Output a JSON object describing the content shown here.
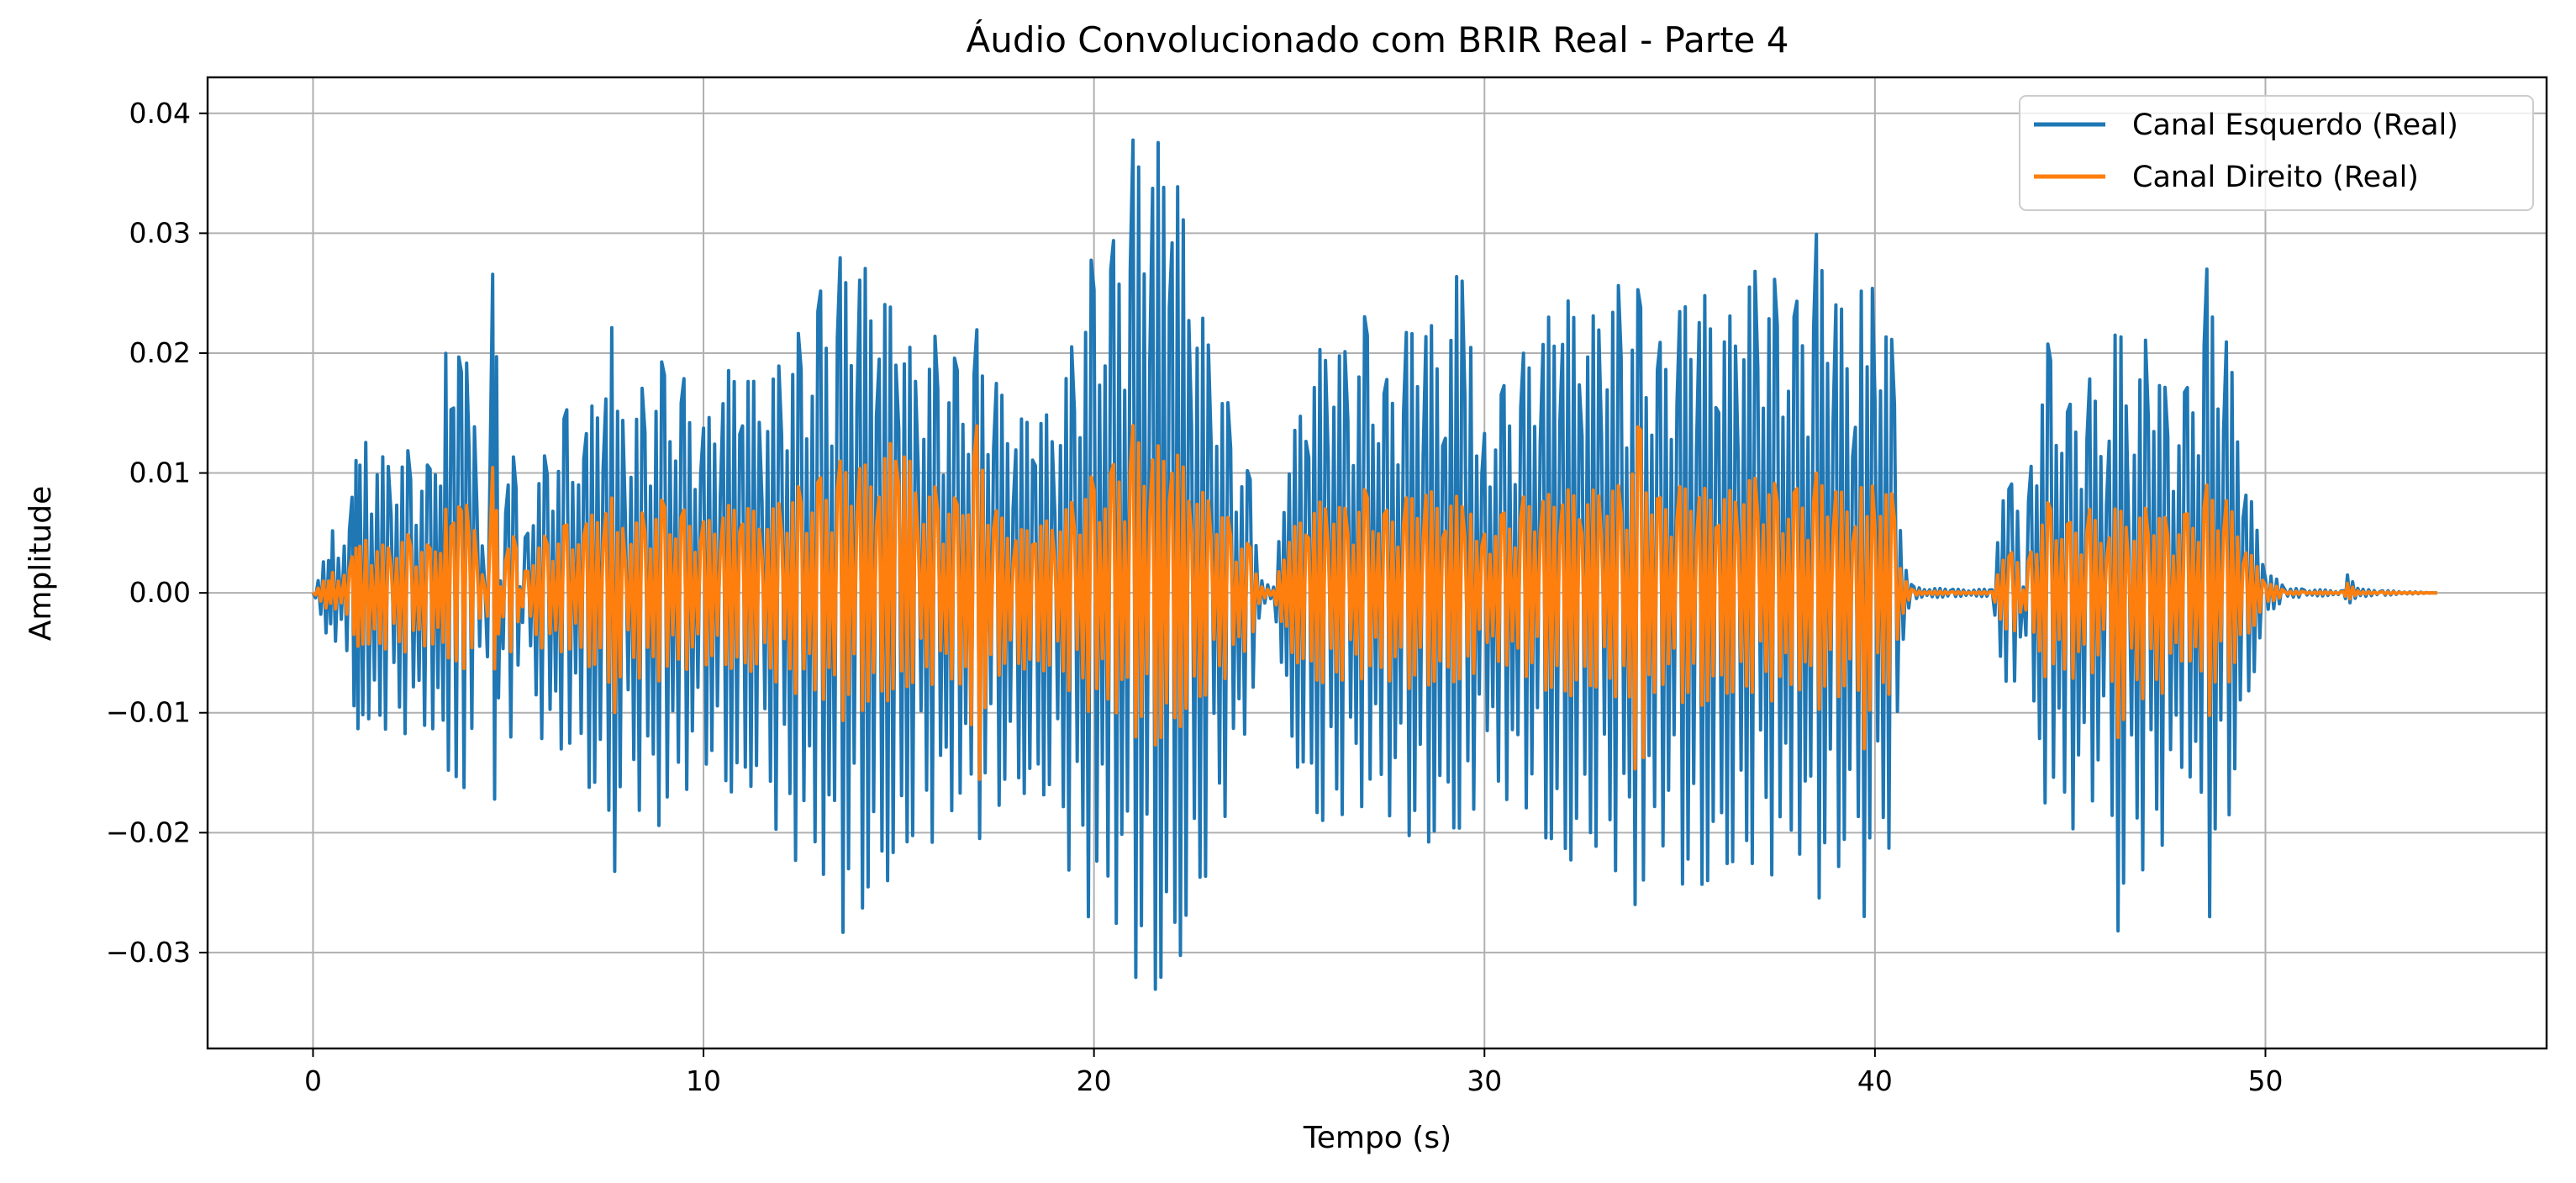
{
  "chart_data": {
    "type": "line",
    "title": "Áudio Convolucionado com BRIR Real - Parte 4",
    "xlabel": "Tempo (s)",
    "ylabel": "Amplitude",
    "xlim": [
      -2.7,
      57.2
    ],
    "ylim": [
      -0.038,
      0.043
    ],
    "xticks": [
      0,
      10,
      20,
      30,
      40,
      50
    ],
    "xtick_labels": [
      "0",
      "10",
      "20",
      "30",
      "40",
      "50"
    ],
    "yticks": [
      0.04,
      0.03,
      0.02,
      0.01,
      0.0,
      -0.01,
      -0.02,
      -0.03
    ],
    "ytick_labels": [
      "0.04",
      "0.03",
      "0.02",
      "0.01",
      "0.00",
      "−0.01",
      "−0.02",
      "−0.03"
    ],
    "grid": true,
    "legend_position": "top-right",
    "series": [
      {
        "name": "Canal Esquerdo (Real)",
        "color": "#1f77b4",
        "x": [
          0,
          0.4,
          0.5,
          0.8,
          1.0,
          1.1,
          1.2,
          1.5,
          2.0,
          2.5,
          3.0,
          3.4,
          3.6,
          3.8,
          4.0,
          4.2,
          4.4,
          4.6,
          4.7,
          4.8,
          5.0,
          5.2,
          5.3,
          5.5,
          6.0,
          6.5,
          6.8,
          7.0,
          7.5,
          7.8,
          8.0,
          8.5,
          9.0,
          9.5,
          10.0,
          10.5,
          11.0,
          11.5,
          12.0,
          12.5,
          13.0,
          13.5,
          14.0,
          14.5,
          15.0,
          15.5,
          16.0,
          16.5,
          17.0,
          17.5,
          18.0,
          18.5,
          19.0,
          19.5,
          20.0,
          20.5,
          21.0,
          21.5,
          22.0,
          22.5,
          23.0,
          23.5,
          24.0,
          24.3,
          24.6,
          25.0,
          25.5,
          26.0,
          26.5,
          27.0,
          27.5,
          28.0,
          28.5,
          29.0,
          29.5,
          29.8,
          30.0,
          30.5,
          31.0,
          31.5,
          32.0,
          32.5,
          33.0,
          33.5,
          34.0,
          34.5,
          35.0,
          35.5,
          36.0,
          36.5,
          37.0,
          37.5,
          38.0,
          38.5,
          39.0,
          39.5,
          39.8,
          40.0,
          40.5,
          40.8,
          41.0,
          42.0,
          43.0,
          43.5,
          43.8,
          44.0,
          44.5,
          45.0,
          45.5,
          46.0,
          46.3,
          46.5,
          47.0,
          47.5,
          48.0,
          48.5,
          49.0,
          49.5,
          50.0,
          50.5,
          51.0,
          52.0,
          52.1,
          52.5,
          53.0,
          54.4
        ],
        "y_upper": [
          0,
          0.004,
          0.006,
          0.004,
          0.008,
          0.012,
          0.014,
          0.012,
          0.011,
          0.012,
          0.011,
          0.02,
          0.016,
          0.022,
          0.018,
          0.014,
          0.001,
          0.03,
          0.02,
          0.001,
          0.01,
          0.012,
          0.001,
          0.008,
          0.012,
          0.016,
          0.009,
          0.014,
          0.02,
          0.025,
          0.012,
          0.018,
          0.02,
          0.018,
          0.014,
          0.018,
          0.02,
          0.016,
          0.02,
          0.022,
          0.026,
          0.028,
          0.028,
          0.025,
          0.024,
          0.018,
          0.022,
          0.02,
          0.022,
          0.018,
          0.014,
          0.016,
          0.014,
          0.022,
          0.029,
          0.03,
          0.038,
          0.037,
          0.039,
          0.026,
          0.021,
          0.015,
          0.01,
          0.001,
          0.0005,
          0.012,
          0.018,
          0.022,
          0.02,
          0.024,
          0.018,
          0.022,
          0.024,
          0.018,
          0.033,
          0.018,
          0.016,
          0.018,
          0.02,
          0.022,
          0.026,
          0.022,
          0.024,
          0.026,
          0.026,
          0.021,
          0.024,
          0.026,
          0.022,
          0.024,
          0.028,
          0.026,
          0.025,
          0.03,
          0.026,
          0.018,
          0.034,
          0.028,
          0.02,
          0.002,
          0.0005,
          0.0003,
          0.0003,
          0.014,
          0.001,
          0.015,
          0.022,
          0.016,
          0.018,
          0.014,
          0.029,
          0.01,
          0.024,
          0.016,
          0.018,
          0.027,
          0.022,
          0.01,
          0.002,
          0.0005,
          0.0003,
          0.0002,
          0.0015,
          0.0003,
          0.0002,
          0
        ],
        "y_lower": [
          0,
          -0.004,
          -0.006,
          -0.004,
          -0.008,
          -0.011,
          -0.012,
          -0.01,
          -0.012,
          -0.012,
          -0.013,
          -0.016,
          -0.014,
          -0.018,
          -0.016,
          -0.011,
          -0.001,
          -0.027,
          -0.018,
          -0.001,
          -0.012,
          -0.013,
          -0.001,
          -0.009,
          -0.014,
          -0.016,
          -0.01,
          -0.016,
          -0.018,
          -0.025,
          -0.014,
          -0.02,
          -0.022,
          -0.018,
          -0.014,
          -0.016,
          -0.018,
          -0.014,
          -0.022,
          -0.024,
          -0.026,
          -0.029,
          -0.027,
          -0.024,
          -0.024,
          -0.019,
          -0.022,
          -0.02,
          -0.022,
          -0.018,
          -0.016,
          -0.018,
          -0.016,
          -0.026,
          -0.03,
          -0.03,
          -0.032,
          -0.034,
          -0.032,
          -0.028,
          -0.022,
          -0.018,
          -0.012,
          -0.001,
          -0.0005,
          -0.012,
          -0.018,
          -0.02,
          -0.018,
          -0.02,
          -0.02,
          -0.02,
          -0.022,
          -0.018,
          -0.022,
          -0.019,
          -0.016,
          -0.02,
          -0.018,
          -0.02,
          -0.024,
          -0.02,
          -0.022,
          -0.024,
          -0.031,
          -0.022,
          -0.024,
          -0.026,
          -0.022,
          -0.024,
          -0.022,
          -0.026,
          -0.024,
          -0.026,
          -0.024,
          -0.018,
          -0.03,
          -0.026,
          -0.02,
          -0.002,
          -0.0005,
          -0.0003,
          -0.0003,
          -0.012,
          -0.001,
          -0.016,
          -0.02,
          -0.022,
          -0.018,
          -0.014,
          -0.034,
          -0.016,
          -0.026,
          -0.02,
          -0.016,
          -0.029,
          -0.02,
          -0.01,
          -0.002,
          -0.0005,
          -0.0003,
          -0.0002,
          -0.001,
          -0.0003,
          -0.0002,
          0
        ]
      },
      {
        "name": "Canal Direito (Real)",
        "color": "#ff7f0e",
        "x": [
          0,
          0.4,
          0.5,
          0.8,
          1.0,
          1.1,
          1.2,
          1.5,
          2.0,
          2.5,
          3.0,
          3.4,
          3.6,
          3.8,
          4.0,
          4.2,
          4.4,
          4.6,
          4.7,
          4.8,
          5.0,
          5.2,
          5.3,
          5.5,
          6.0,
          6.5,
          6.8,
          7.0,
          7.5,
          7.8,
          8.0,
          8.5,
          9.0,
          9.5,
          10.0,
          10.5,
          11.0,
          11.5,
          12.0,
          12.5,
          13.0,
          13.5,
          14.0,
          14.5,
          15.0,
          15.5,
          16.0,
          16.5,
          17.0,
          17.5,
          18.0,
          18.5,
          19.0,
          19.5,
          20.0,
          20.5,
          21.0,
          21.5,
          22.0,
          22.5,
          23.0,
          23.5,
          24.0,
          24.3,
          24.6,
          25.0,
          25.5,
          26.0,
          26.5,
          27.0,
          27.5,
          28.0,
          28.5,
          29.0,
          29.5,
          29.8,
          30.0,
          30.5,
          31.0,
          31.5,
          32.0,
          32.5,
          33.0,
          33.5,
          34.0,
          34.5,
          35.0,
          35.5,
          36.0,
          36.5,
          37.0,
          37.5,
          38.0,
          38.5,
          39.0,
          39.5,
          39.8,
          40.0,
          40.5,
          40.8,
          41.0,
          42.0,
          43.0,
          43.5,
          43.8,
          44.0,
          44.5,
          45.0,
          45.5,
          46.0,
          46.3,
          46.5,
          47.0,
          47.5,
          48.0,
          48.5,
          49.0,
          49.5,
          50.0,
          50.5,
          51.0,
          52.0,
          52.1,
          52.5,
          53.0,
          54.4
        ],
        "y_upper": [
          0,
          0.0015,
          0.002,
          0.0015,
          0.003,
          0.004,
          0.005,
          0.004,
          0.004,
          0.005,
          0.004,
          0.007,
          0.006,
          0.008,
          0.007,
          0.005,
          0.0005,
          0.012,
          0.007,
          0.0005,
          0.004,
          0.005,
          0.0005,
          0.003,
          0.005,
          0.006,
          0.004,
          0.006,
          0.008,
          0.008,
          0.005,
          0.007,
          0.008,
          0.007,
          0.006,
          0.007,
          0.008,
          0.006,
          0.008,
          0.009,
          0.01,
          0.011,
          0.011,
          0.01,
          0.015,
          0.008,
          0.009,
          0.008,
          0.014,
          0.007,
          0.005,
          0.006,
          0.006,
          0.008,
          0.01,
          0.011,
          0.014,
          0.012,
          0.013,
          0.009,
          0.008,
          0.006,
          0.004,
          0.0005,
          0.0002,
          0.005,
          0.007,
          0.008,
          0.007,
          0.009,
          0.007,
          0.008,
          0.009,
          0.007,
          0.009,
          0.007,
          0.006,
          0.007,
          0.008,
          0.008,
          0.009,
          0.008,
          0.009,
          0.009,
          0.015,
          0.008,
          0.009,
          0.009,
          0.008,
          0.009,
          0.01,
          0.009,
          0.009,
          0.01,
          0.009,
          0.007,
          0.011,
          0.01,
          0.008,
          0.001,
          0.0002,
          0.0001,
          0.0001,
          0.005,
          0.0005,
          0.005,
          0.008,
          0.006,
          0.007,
          0.005,
          0.009,
          0.004,
          0.008,
          0.006,
          0.007,
          0.009,
          0.008,
          0.004,
          0.001,
          0.0002,
          0.0001,
          0.0001,
          0.0008,
          0.0001,
          0.0001,
          0
        ],
        "y_lower": [
          0,
          -0.0015,
          -0.002,
          -0.0015,
          -0.003,
          -0.004,
          -0.005,
          -0.004,
          -0.005,
          -0.005,
          -0.005,
          -0.006,
          -0.005,
          -0.007,
          -0.006,
          -0.005,
          -0.0005,
          -0.01,
          -0.007,
          -0.0005,
          -0.005,
          -0.005,
          -0.0005,
          -0.004,
          -0.005,
          -0.006,
          -0.004,
          -0.006,
          -0.007,
          -0.011,
          -0.005,
          -0.008,
          -0.008,
          -0.007,
          -0.006,
          -0.006,
          -0.007,
          -0.006,
          -0.008,
          -0.009,
          -0.01,
          -0.011,
          -0.01,
          -0.009,
          -0.009,
          -0.007,
          -0.008,
          -0.008,
          -0.018,
          -0.007,
          -0.006,
          -0.007,
          -0.006,
          -0.009,
          -0.011,
          -0.011,
          -0.012,
          -0.013,
          -0.012,
          -0.01,
          -0.008,
          -0.007,
          -0.005,
          -0.0005,
          -0.0002,
          -0.005,
          -0.007,
          -0.008,
          -0.007,
          -0.008,
          -0.008,
          -0.008,
          -0.008,
          -0.007,
          -0.008,
          -0.007,
          -0.006,
          -0.007,
          -0.007,
          -0.008,
          -0.009,
          -0.008,
          -0.008,
          -0.009,
          -0.019,
          -0.008,
          -0.009,
          -0.01,
          -0.008,
          -0.009,
          -0.008,
          -0.01,
          -0.009,
          -0.01,
          -0.009,
          -0.007,
          -0.015,
          -0.01,
          -0.008,
          -0.001,
          -0.0002,
          -0.0001,
          -0.0001,
          -0.005,
          -0.0005,
          -0.006,
          -0.008,
          -0.008,
          -0.007,
          -0.005,
          -0.015,
          -0.006,
          -0.01,
          -0.008,
          -0.006,
          -0.011,
          -0.008,
          -0.004,
          -0.001,
          -0.0002,
          -0.0001,
          -0.0001,
          -0.0006,
          -0.0001,
          -0.0001,
          0
        ]
      }
    ]
  }
}
